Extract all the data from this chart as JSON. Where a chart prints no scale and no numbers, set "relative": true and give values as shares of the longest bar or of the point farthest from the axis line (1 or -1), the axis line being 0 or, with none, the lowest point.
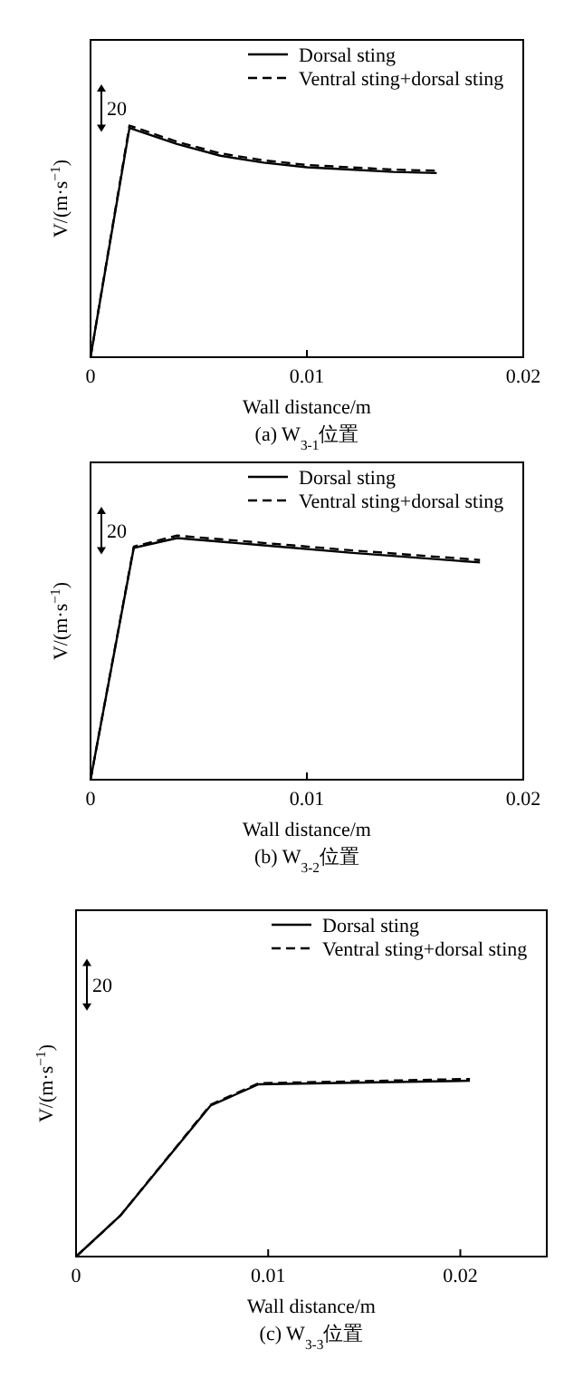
{
  "chart_data": [
    {
      "type": "line",
      "relative": true,
      "xlabel": "Wall distance/m",
      "ylabel": "V/(m·s$^{−1}$)",
      "xlim": [
        0,
        0.02
      ],
      "xticks": [
        0,
        0.01,
        0.02
      ],
      "legend": "top right",
      "annotations": [
        "20",
        "(a) W$_{3-1}$位置"
      ],
      "series": [
        {
          "name": "Dorsal sting",
          "color": "#000000",
          "line_style": "solid",
          "x": [
            0,
            0.0018,
            0.004,
            0.006,
            0.008,
            0.01,
            0.012,
            0.014,
            0.016
          ],
          "values": [
            0,
            0.99,
            0.92,
            0.87,
            0.84,
            0.82,
            0.81,
            0.8,
            0.795
          ]
        },
        {
          "name": "Ventral sting+dorsal sting",
          "color": "#000000",
          "line_style": "dashed",
          "x": [
            0,
            0.0018,
            0.004,
            0.006,
            0.008,
            0.01,
            0.012,
            0.014,
            0.016
          ],
          "values": [
            0,
            1.0,
            0.93,
            0.88,
            0.85,
            0.83,
            0.82,
            0.81,
            0.805
          ]
        }
      ]
    },
    {
      "type": "line",
      "relative": true,
      "xlabel": "Wall distance/m",
      "ylabel": "V/(m·s$^{−1}$)",
      "xlim": [
        0,
        0.02
      ],
      "xticks": [
        0,
        0.01,
        0.02
      ],
      "legend": "top right",
      "annotations": [
        "20",
        "(b) W$_{3-2}$位置"
      ],
      "series": [
        {
          "name": "Dorsal sting",
          "color": "#000000",
          "line_style": "solid",
          "x": [
            0,
            0.002,
            0.004,
            0.008,
            0.012,
            0.018
          ],
          "values": [
            0,
            0.95,
            0.99,
            0.96,
            0.93,
            0.89
          ]
        },
        {
          "name": "Ventral sting+dorsal sting",
          "color": "#000000",
          "line_style": "dashed",
          "x": [
            0,
            0.002,
            0.004,
            0.008,
            0.012,
            0.018
          ],
          "values": [
            0,
            0.955,
            1.0,
            0.97,
            0.94,
            0.9
          ]
        }
      ]
    },
    {
      "type": "line",
      "relative": true,
      "xlabel": "Wall distance/m",
      "ylabel": "V/(m·s$^{−1}$)",
      "xlim": [
        0,
        0.0245
      ],
      "xticks": [
        0,
        0.01,
        0.02
      ],
      "legend": "top right",
      "annotations": [
        "20",
        "(c) W$_{3-3}$位置"
      ],
      "series": [
        {
          "name": "Dorsal sting",
          "color": "#000000",
          "line_style": "solid",
          "x": [
            0,
            0.0023,
            0.007,
            0.0095,
            0.0205
          ],
          "values": [
            0,
            0.23,
            0.85,
            0.97,
            0.99
          ]
        },
        {
          "name": "Ventral sting+dorsal sting",
          "color": "#000000",
          "line_style": "dashed",
          "x": [
            0,
            0.0023,
            0.007,
            0.0095,
            0.0205
          ],
          "values": [
            0,
            0.23,
            0.855,
            0.976,
            1.0
          ]
        }
      ]
    }
  ]
}
